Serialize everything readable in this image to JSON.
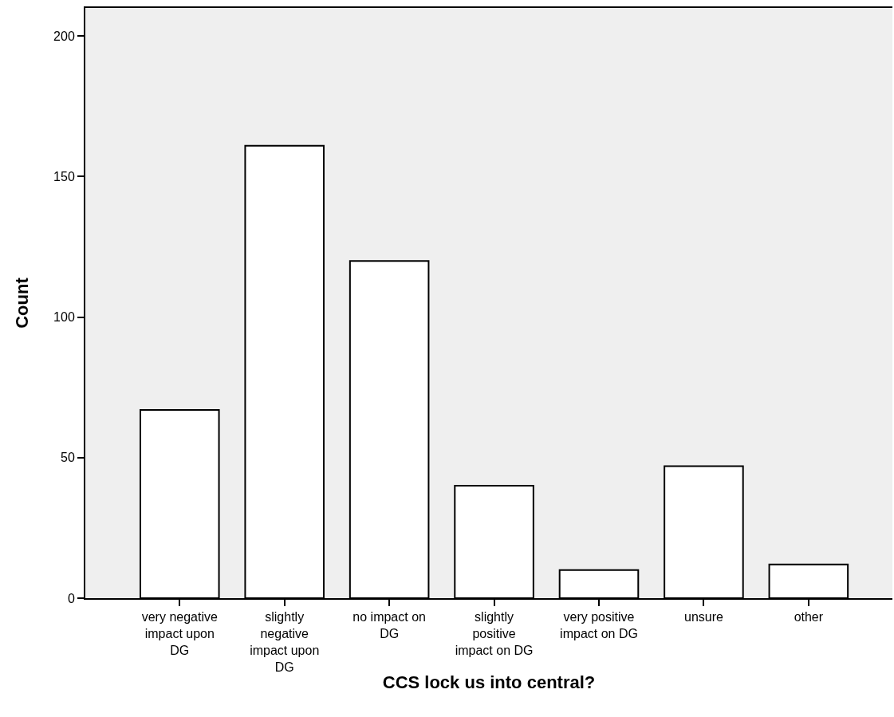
{
  "chart_data": {
    "type": "bar",
    "xlabel": "CCS lock us into central?",
    "ylabel": "Count",
    "categories": [
      "very negative impact upon DG",
      "slightly negative impact upon DG",
      "no impact on DG",
      "slightly positive impact on DG",
      "very positive impact on DG",
      "unsure",
      "other"
    ],
    "values": [
      67,
      161,
      120,
      40,
      10,
      47,
      12
    ],
    "color": "#ffffff",
    "ylim": [
      0,
      210
    ],
    "yticks": [
      0,
      50,
      100,
      150,
      200
    ],
    "grid": false
  }
}
